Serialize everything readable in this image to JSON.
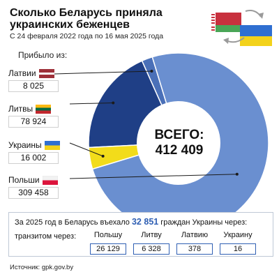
{
  "title": "Сколько Беларусь приняла украинских беженцев",
  "subtitle": "С 24 февраля 2022 года по 16 мая 2025 года",
  "arrived_label": "Прибыло из:",
  "total": {
    "label": "ВСЕГО:",
    "value": "412 409"
  },
  "chart_data": {
    "type": "pie",
    "title": "Сколько Беларусь приняла украинских беженцев",
    "subtitle": "С 24 февраля 2022 года по 16 мая 2025 года",
    "categories": [
      "Латвии",
      "Литвы",
      "Украины",
      "Польши"
    ],
    "values": [
      8025,
      78924,
      16002,
      309458
    ],
    "value_labels": [
      "8 025",
      "78 924",
      "16 002",
      "309 458"
    ],
    "colors": [
      "#4a70b8",
      "#1f3f86",
      "#f2dc1a",
      "#6a8fd0"
    ],
    "total": 412409
  },
  "transit": {
    "prefix": "За 2025 год в Беларусь въехало",
    "number": "32 851",
    "suffix": "граждан Украины через:",
    "label": "транзитом через:",
    "countries": [
      {
        "name": "Польшу",
        "value": "26 129"
      },
      {
        "name": "Литву",
        "value": "6 328"
      },
      {
        "name": "Латвию",
        "value": "378"
      },
      {
        "name": "Украину",
        "value": "16"
      }
    ]
  },
  "source": "Источник: gpk.gov.by",
  "icons": {
    "belarus_flag": "belarus-flag-icon",
    "ukraine_flag": "ukraine-flag-icon",
    "arrow": "arrow-icon"
  }
}
